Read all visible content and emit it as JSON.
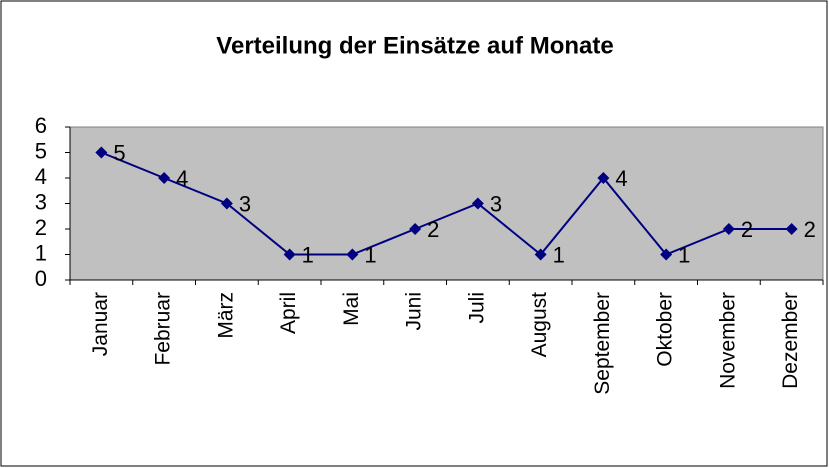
{
  "chart_data": {
    "type": "line",
    "title": "Verteilung der Einsätze auf Monate",
    "categories": [
      "Januar",
      "Februar",
      "März",
      "April",
      "Mai",
      "Juni",
      "Juli",
      "August",
      "September",
      "Oktober",
      "November",
      "Dezember"
    ],
    "values": [
      5,
      4,
      3,
      1,
      1,
      2,
      3,
      1,
      4,
      1,
      2,
      2
    ],
    "color": "#000080",
    "plot_background": "#c0c0c0",
    "ylim": [
      0,
      6
    ],
    "yticks": [
      0,
      1,
      2,
      3,
      4,
      5,
      6
    ],
    "grid": false,
    "data_labels": true
  }
}
